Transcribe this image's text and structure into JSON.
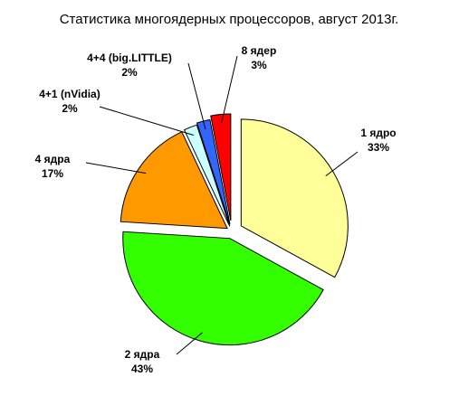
{
  "chart_data": {
    "type": "pie",
    "title": "Статистика многоядерных процессоров, август 2013г.",
    "slices": [
      {
        "label": "1 ядро",
        "percent_label": "33%",
        "value": 33,
        "color": "#FFFF99"
      },
      {
        "label": "2 ядра",
        "percent_label": "43%",
        "value": 43,
        "color": "#33FF00"
      },
      {
        "label": "4 ядра",
        "percent_label": "17%",
        "value": 17,
        "color": "#FF9900"
      },
      {
        "label": "4+1 (nVidia)",
        "percent_label": "2%",
        "value": 2,
        "color": "#CCFFFF"
      },
      {
        "label": "4+4 (big.LITTLE)",
        "percent_label": "2%",
        "value": 2,
        "color": "#3366FF"
      },
      {
        "label": "8 ядер",
        "percent_label": "3%",
        "value": 3,
        "color": "#FF0000"
      }
    ],
    "start_angle_deg": 0,
    "direction": "clockwise",
    "exploded": true,
    "legend": "none"
  }
}
